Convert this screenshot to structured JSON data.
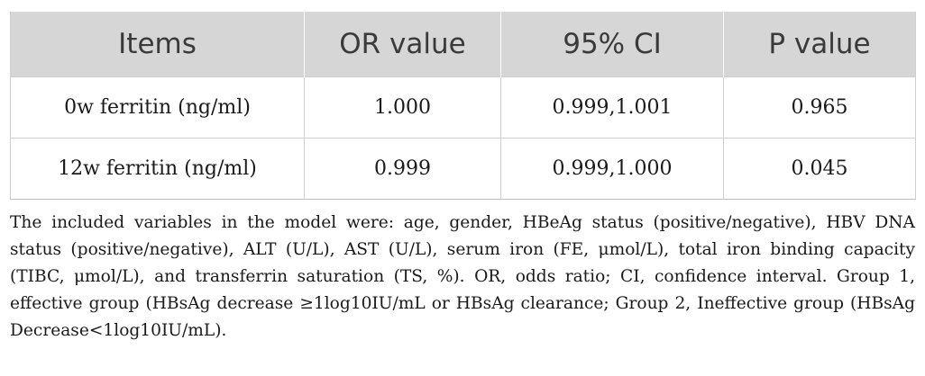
{
  "table": {
    "headers": [
      "Items",
      "OR value",
      "95% CI",
      "P value"
    ],
    "rows": [
      {
        "item": "0w ferritin (ng/ml)",
        "or_value": "1.000",
        "ci": "0.999,1.001",
        "p_value": "0.965"
      },
      {
        "item": "12w ferritin (ng/ml)",
        "or_value": "0.999",
        "ci": "0.999,1.000",
        "p_value": "0.045"
      }
    ]
  },
  "footnote": "The included variables in the model were: age, gender, HBeAg status (positive/negative), HBV DNA status (positive/negative), ALT (U/L), AST (U/L), serum iron (FE, μmol/L), total iron binding capacity (TIBC, μmol/L), and transferrin saturation (TS, %). OR, odds ratio; CI, confidence interval. Group 1, effective group (HBsAg decrease ≥1log10IU/mL or HBsAg clearance; Group 2, Ineffective group (HBsAg Decrease<1log10IU/mL).",
  "colors": {
    "header_bg": "#d6d6d6",
    "header_text": "#3a3a3a",
    "grid": "#cfcfcf"
  }
}
